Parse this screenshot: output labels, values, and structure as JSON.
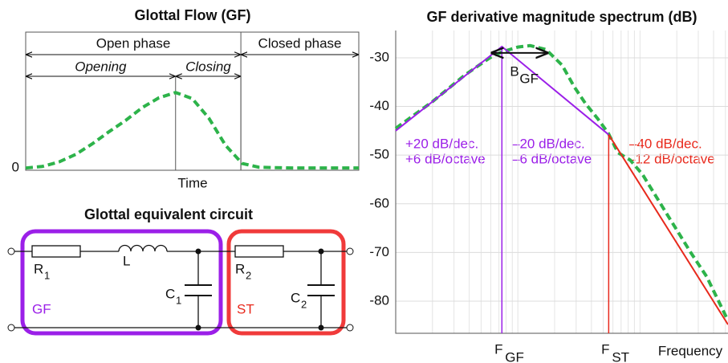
{
  "chart_data": [
    {
      "type": "line",
      "title": "Glottal Flow (GF)",
      "x_label": "Time",
      "x": [
        0,
        0.05,
        0.1,
        0.15,
        0.2,
        0.25,
        0.3,
        0.35,
        0.4,
        0.45,
        0.5,
        0.55,
        0.6,
        0.65,
        0.7,
        0.8,
        1
      ],
      "series": [
        {
          "color": "#2db34a",
          "values": [
            0,
            0.02,
            0.08,
            0.18,
            0.32,
            0.48,
            0.63,
            0.8,
            0.93,
            1,
            0.92,
            0.66,
            0.3,
            0.06,
            0.01,
            0,
            0
          ]
        }
      ],
      "xlim": [
        0,
        1
      ],
      "ylim": [
        -0.03,
        1.8
      ],
      "yticks": [
        0
      ],
      "phases": [
        {
          "label": "Open phase",
          "range": [
            0,
            0.646
          ]
        },
        {
          "label": "Closed phase",
          "range": [
            0.646,
            1
          ]
        }
      ],
      "subphases": [
        {
          "label": "Opening",
          "range": [
            0,
            0.45
          ]
        },
        {
          "label": "Closing",
          "range": [
            0.45,
            0.646
          ]
        }
      ]
    },
    {
      "type": "line",
      "title": "GF derivative magnitude spectrum (dB)",
      "x_label": "Frequency",
      "xlog": true,
      "xlim": [
        1,
        525
      ],
      "ylim": [
        -86.6,
        -24.4
      ],
      "yticks": [
        -30,
        -40,
        -50,
        -60,
        -70,
        -80
      ],
      "grid": true,
      "xticks": [
        {
          "value": 7.4,
          "label": "F"
        },
        {
          "value": 55.4,
          "label": "F"
        }
      ],
      "xtick_subscripts": [
        "GF",
        "ST"
      ],
      "series": [
        {
          "color": "#2db34a",
          "dashed": true,
          "x": [
            1,
            2,
            3.7,
            5.9,
            7.4,
            10,
            12.6,
            17,
            23,
            29,
            36,
            45,
            55,
            66,
            83,
            105,
            165,
            260,
            352,
            525
          ],
          "values": [
            -44.5,
            -39,
            -33.5,
            -30,
            -28.8,
            -27.8,
            -27.5,
            -28.3,
            -31.5,
            -36,
            -39.5,
            -42.5,
            -45.5,
            -49.5,
            -51,
            -54,
            -62,
            -70,
            -75,
            -84
          ]
        },
        {
          "color": "#9b1fe8",
          "x": [
            1,
            7.4,
            55.4
          ],
          "values": [
            -45,
            -27.7,
            -45.8
          ]
        },
        {
          "color": "#e8291c",
          "x": [
            55.4,
            525
          ],
          "values": [
            -45.8,
            -84.8
          ]
        }
      ],
      "bandwidth": {
        "label": "B",
        "sub": "GF",
        "x": [
          6,
          17.8
        ],
        "y": -29
      },
      "annotations": [
        "+20 dB/dec.",
        "+6 dB/octave",
        "–20 dB/dec.",
        "–6 dB/octave",
        "–40 dB/dec.",
        "–12 dB/octave"
      ]
    }
  ],
  "circuit": {
    "title": "Glottal equivalent circuit",
    "components": [
      {
        "label": "R",
        "sub": "1"
      },
      {
        "label": "L"
      },
      {
        "label": "C",
        "sub": "1"
      },
      {
        "label": "R",
        "sub": "2"
      },
      {
        "label": "C",
        "sub": "2"
      }
    ],
    "groups": [
      "GF",
      "ST"
    ]
  }
}
